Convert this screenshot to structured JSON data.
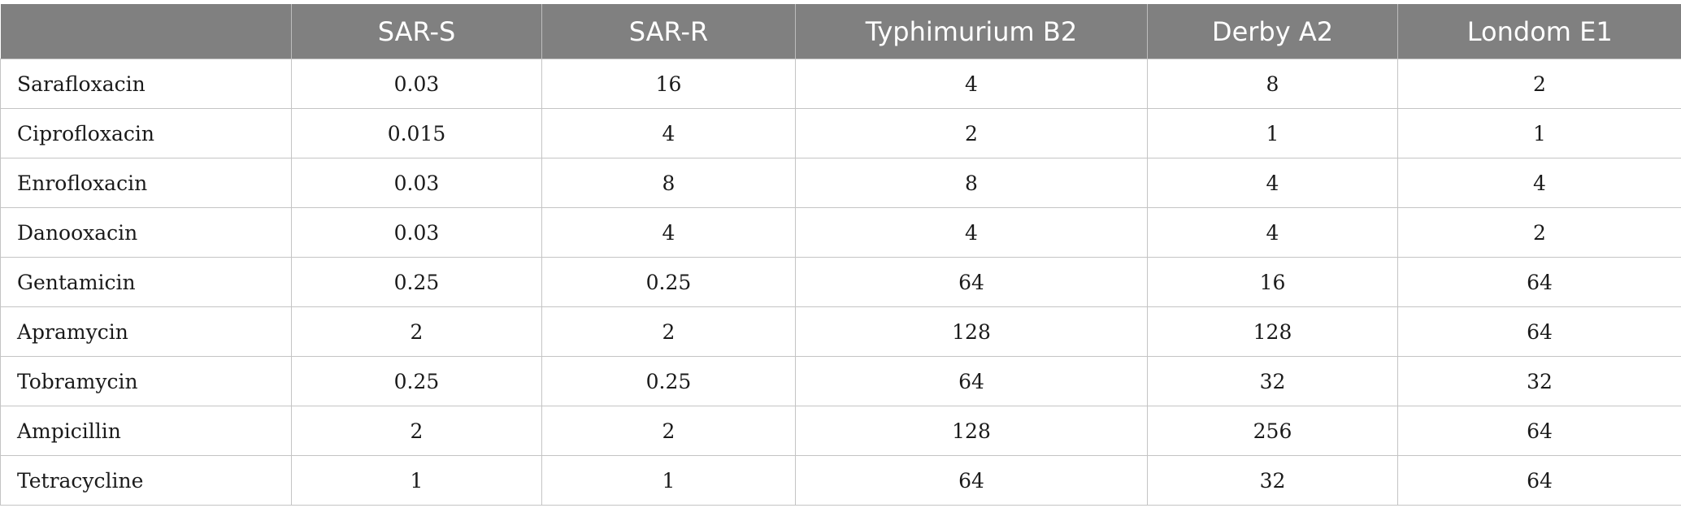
{
  "table": {
    "columns": [
      "",
      "SAR-S",
      "SAR-R",
      "Typhimurium B2",
      "Derby A2",
      "Londom E1"
    ],
    "rows": [
      {
        "name": "Sarafloxacin",
        "values": [
          "0.03",
          "16",
          "4",
          "8",
          "2"
        ]
      },
      {
        "name": "Ciprofloxacin",
        "values": [
          "0.015",
          "4",
          "2",
          "1",
          "1"
        ]
      },
      {
        "name": "Enrofloxacin",
        "values": [
          "0.03",
          "8",
          "8",
          "4",
          "4"
        ]
      },
      {
        "name": "Danooxacin",
        "values": [
          "0.03",
          "4",
          "4",
          "4",
          "2"
        ]
      },
      {
        "name": "Gentamicin",
        "values": [
          "0.25",
          "0.25",
          "64",
          "16",
          "64"
        ]
      },
      {
        "name": "Apramycin",
        "values": [
          "2",
          "2",
          "128",
          "128",
          "64"
        ]
      },
      {
        "name": "Tobramycin",
        "values": [
          "0.25",
          "0.25",
          "64",
          "32",
          "32"
        ]
      },
      {
        "name": "Ampicillin",
        "values": [
          "2",
          "2",
          "128",
          "256",
          "64"
        ]
      },
      {
        "name": "Tetracycline",
        "values": [
          "1",
          "1",
          "64",
          "32",
          "64"
        ]
      }
    ]
  },
  "colors": {
    "header_bg": "#808080",
    "header_text": "#ffffff",
    "grid_line": "#c4c4c4"
  }
}
